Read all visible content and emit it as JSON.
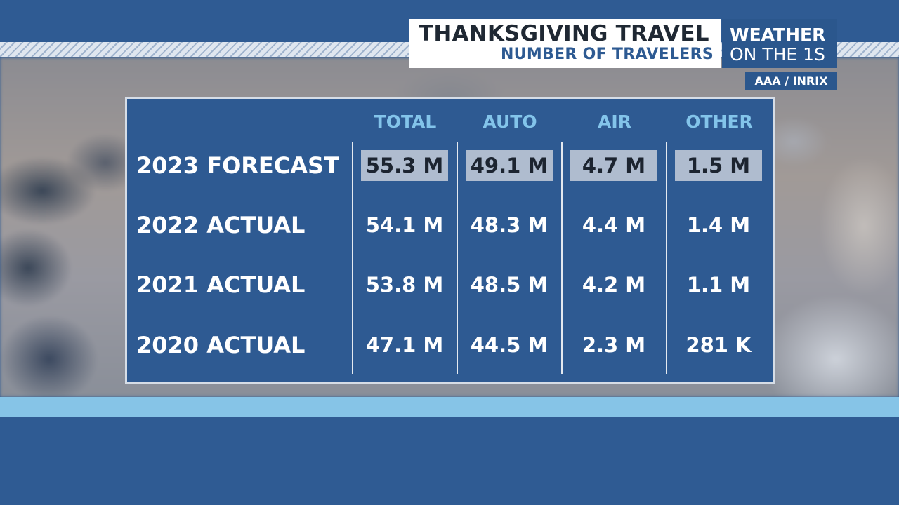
{
  "header": {
    "title": "THANKSGIVING TRAVEL",
    "subtitle": "NUMBER OF TRAVELERS"
  },
  "brand": {
    "line1": "WEATHER",
    "line2": "ON THE 1S"
  },
  "source": "AAA / INRIX",
  "table": {
    "columns": [
      "TOTAL",
      "AUTO",
      "AIR",
      "OTHER"
    ],
    "rows": [
      {
        "label": "2023 FORECAST",
        "values": [
          "55.3 M",
          "49.1 M",
          "4.7 M",
          "1.5 M"
        ],
        "highlighted": true
      },
      {
        "label": "2022 ACTUAL",
        "values": [
          "54.1 M",
          "48.3 M",
          "4.4 M",
          "1.4 M"
        ],
        "highlighted": false
      },
      {
        "label": "2021 ACTUAL",
        "values": [
          "53.8 M",
          "48.5 M",
          "4.2 M",
          "1.1 M"
        ],
        "highlighted": false
      },
      {
        "label": "2020 ACTUAL",
        "values": [
          "47.1 M",
          "44.5 M",
          "2.3 M",
          "281 K"
        ],
        "highlighted": false
      }
    ]
  },
  "colors": {
    "panel": "#2e5a92",
    "header_text": "#83c4ea",
    "highlight": "#afbccf",
    "accent_band": "#86c4e7"
  }
}
